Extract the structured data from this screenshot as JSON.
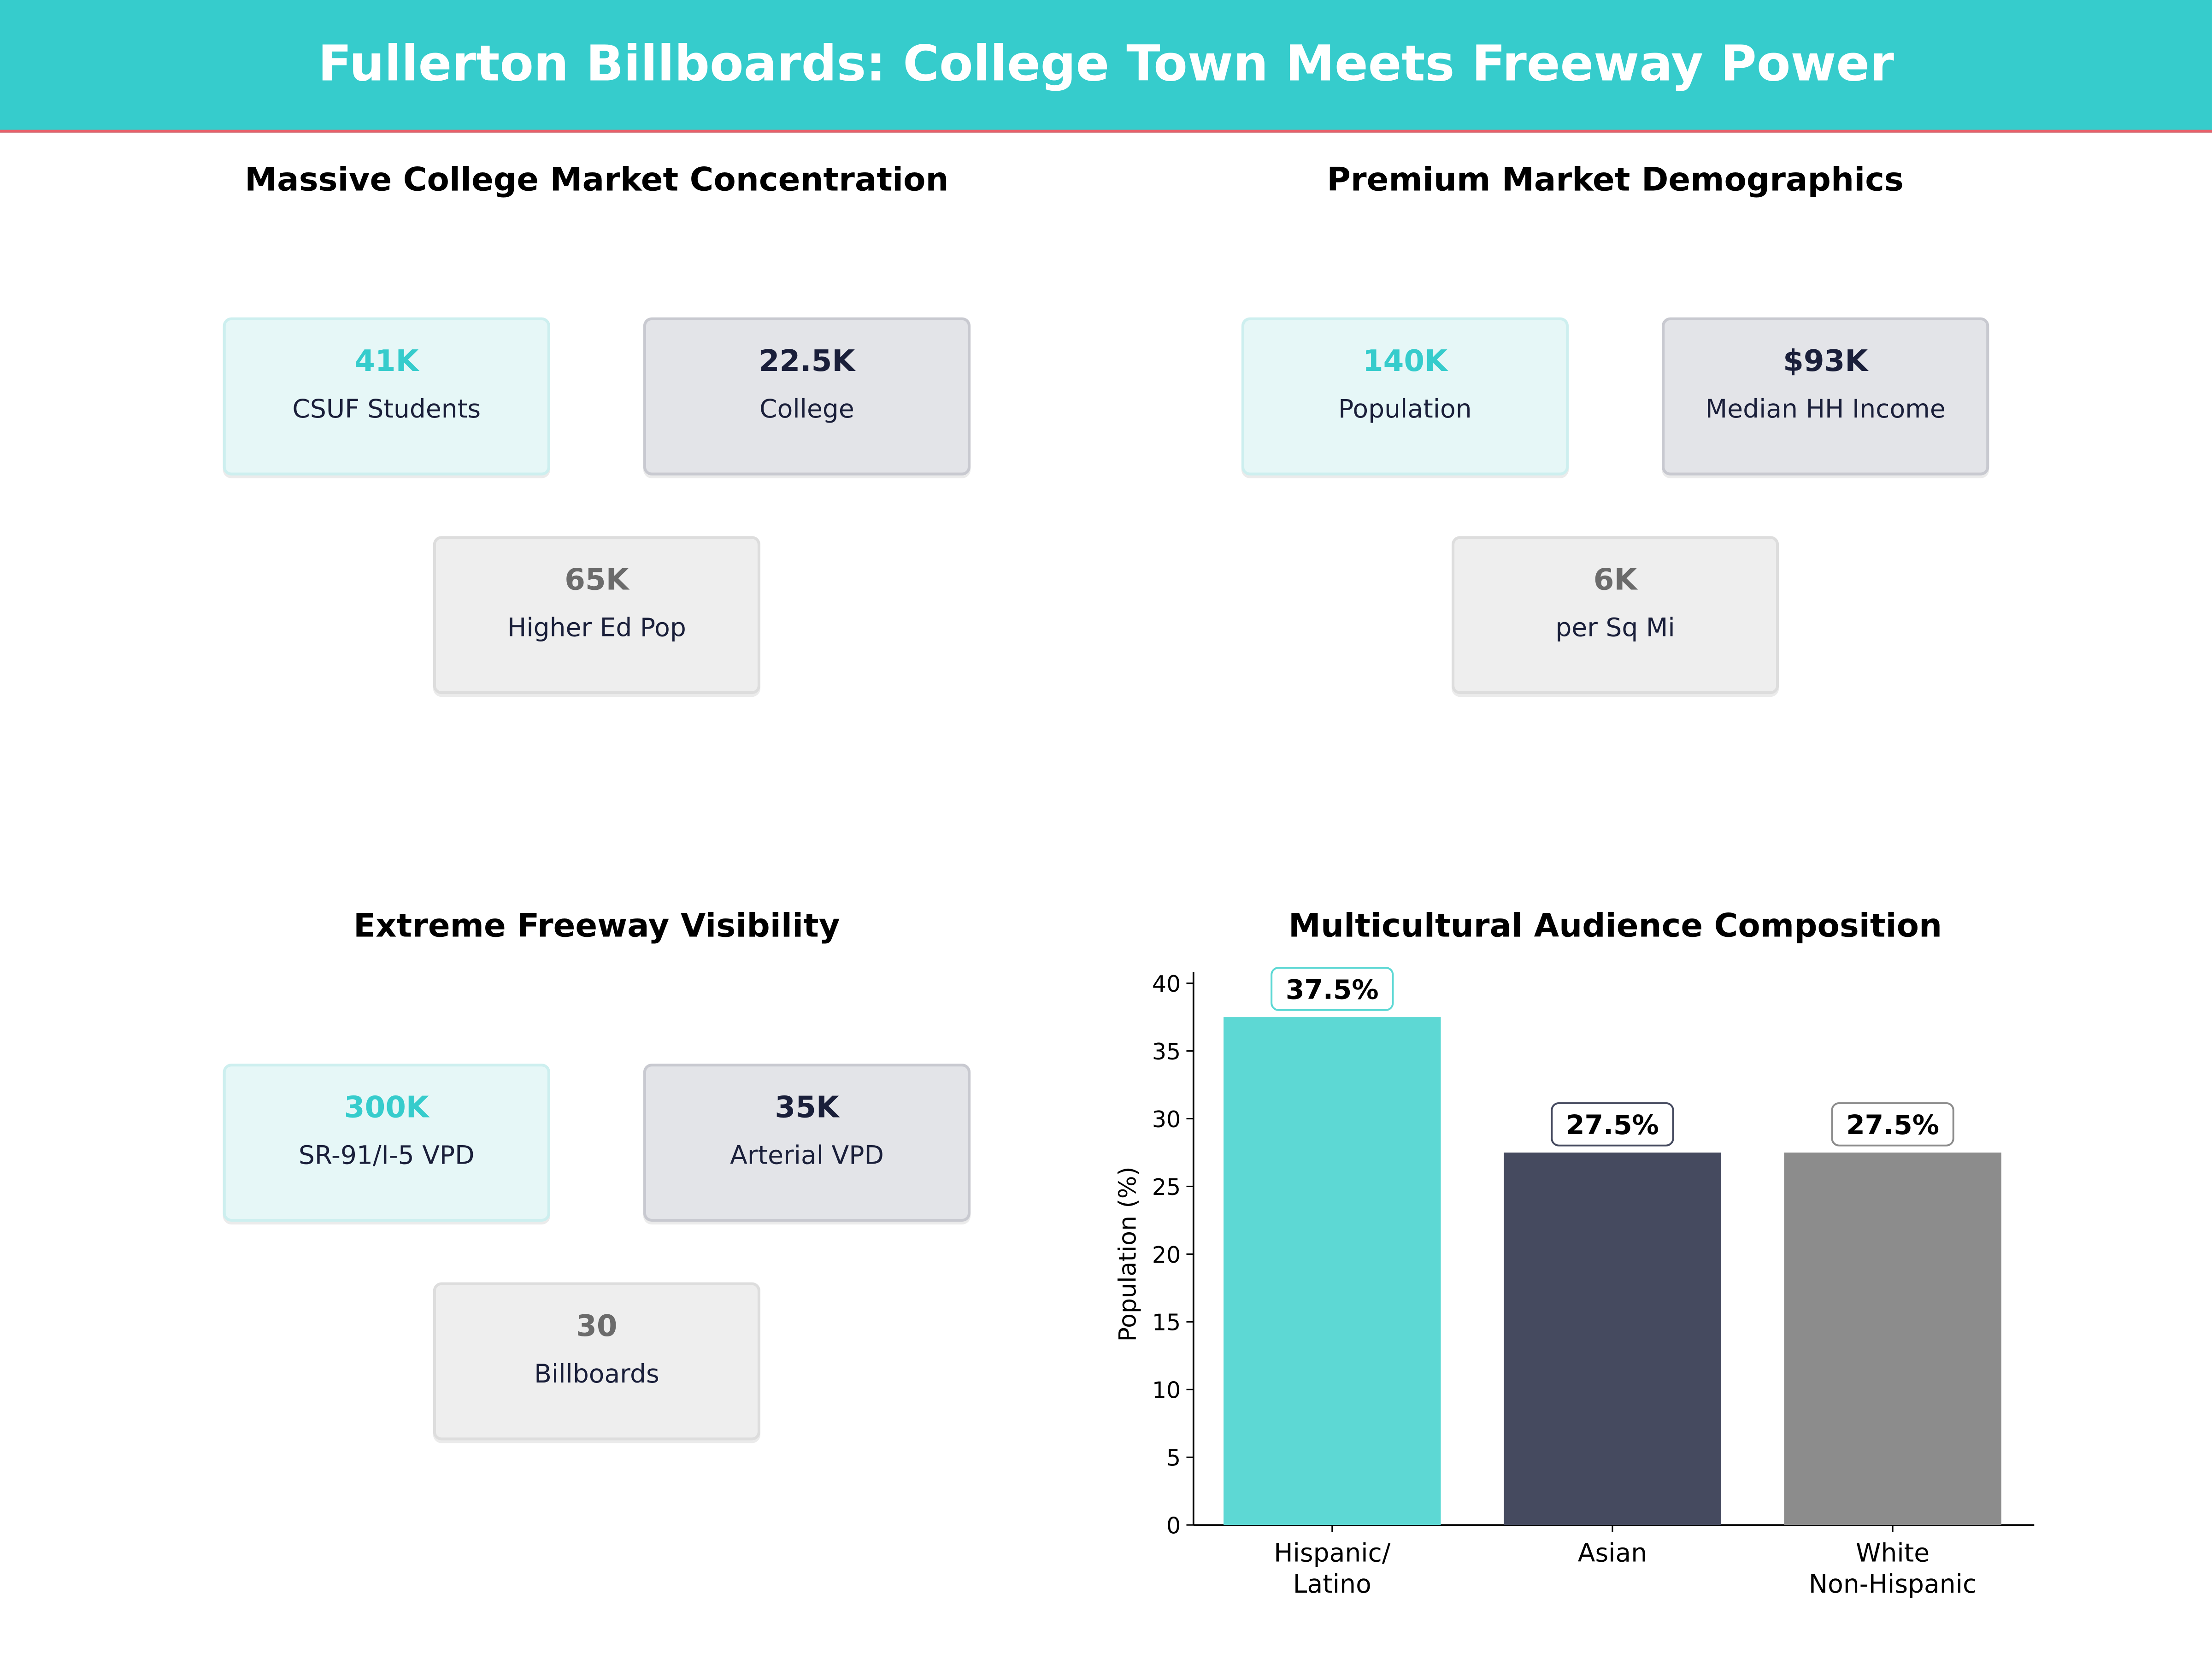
{
  "header": {
    "title": "Fullerton Billboards: College Town Meets Freeway Power"
  },
  "panels": [
    {
      "title": "Massive College Market Concentration",
      "cards": [
        {
          "value": "41K",
          "label": "CSUF Students"
        },
        {
          "value": "22.5K",
          "label": "College"
        },
        {
          "value": "65K",
          "label": "Higher Ed Pop"
        }
      ]
    },
    {
      "title": "Premium Market Demographics",
      "cards": [
        {
          "value": "140K",
          "label": "Population"
        },
        {
          "value": "$93K",
          "label": "Median HH Income"
        },
        {
          "value": "6K",
          "label": "per Sq Mi"
        }
      ]
    },
    {
      "title": "Extreme Freeway Visibility",
      "cards": [
        {
          "value": "300K",
          "label": "SR-91/I-5 VPD"
        },
        {
          "value": "35K",
          "label": "Arterial  VPD"
        },
        {
          "value": "30",
          "label": "Billboards"
        }
      ]
    }
  ],
  "colors": {
    "accent": "#36CCCC",
    "divider": "#E8606A",
    "navy": "#1A1F3A",
    "gray": "#6B6B6B"
  },
  "chart_data": {
    "type": "bar",
    "title": "Multicultural Audience Composition",
    "ylabel": "Population (%)",
    "xlabel": "",
    "categories": [
      "Hispanic/\nLatino",
      "Asian",
      "White\nNon-Hispanic"
    ],
    "values": [
      37.5,
      27.5,
      27.5
    ],
    "data_labels": [
      "37.5%",
      "27.5%",
      "27.5%"
    ],
    "colors": [
      "#5DD8D4",
      "#454A5F",
      "#8C8C8C"
    ],
    "ylim": [
      0,
      40
    ],
    "yticks": [
      0,
      5,
      10,
      15,
      20,
      25,
      30,
      35,
      40
    ],
    "grid": false
  }
}
